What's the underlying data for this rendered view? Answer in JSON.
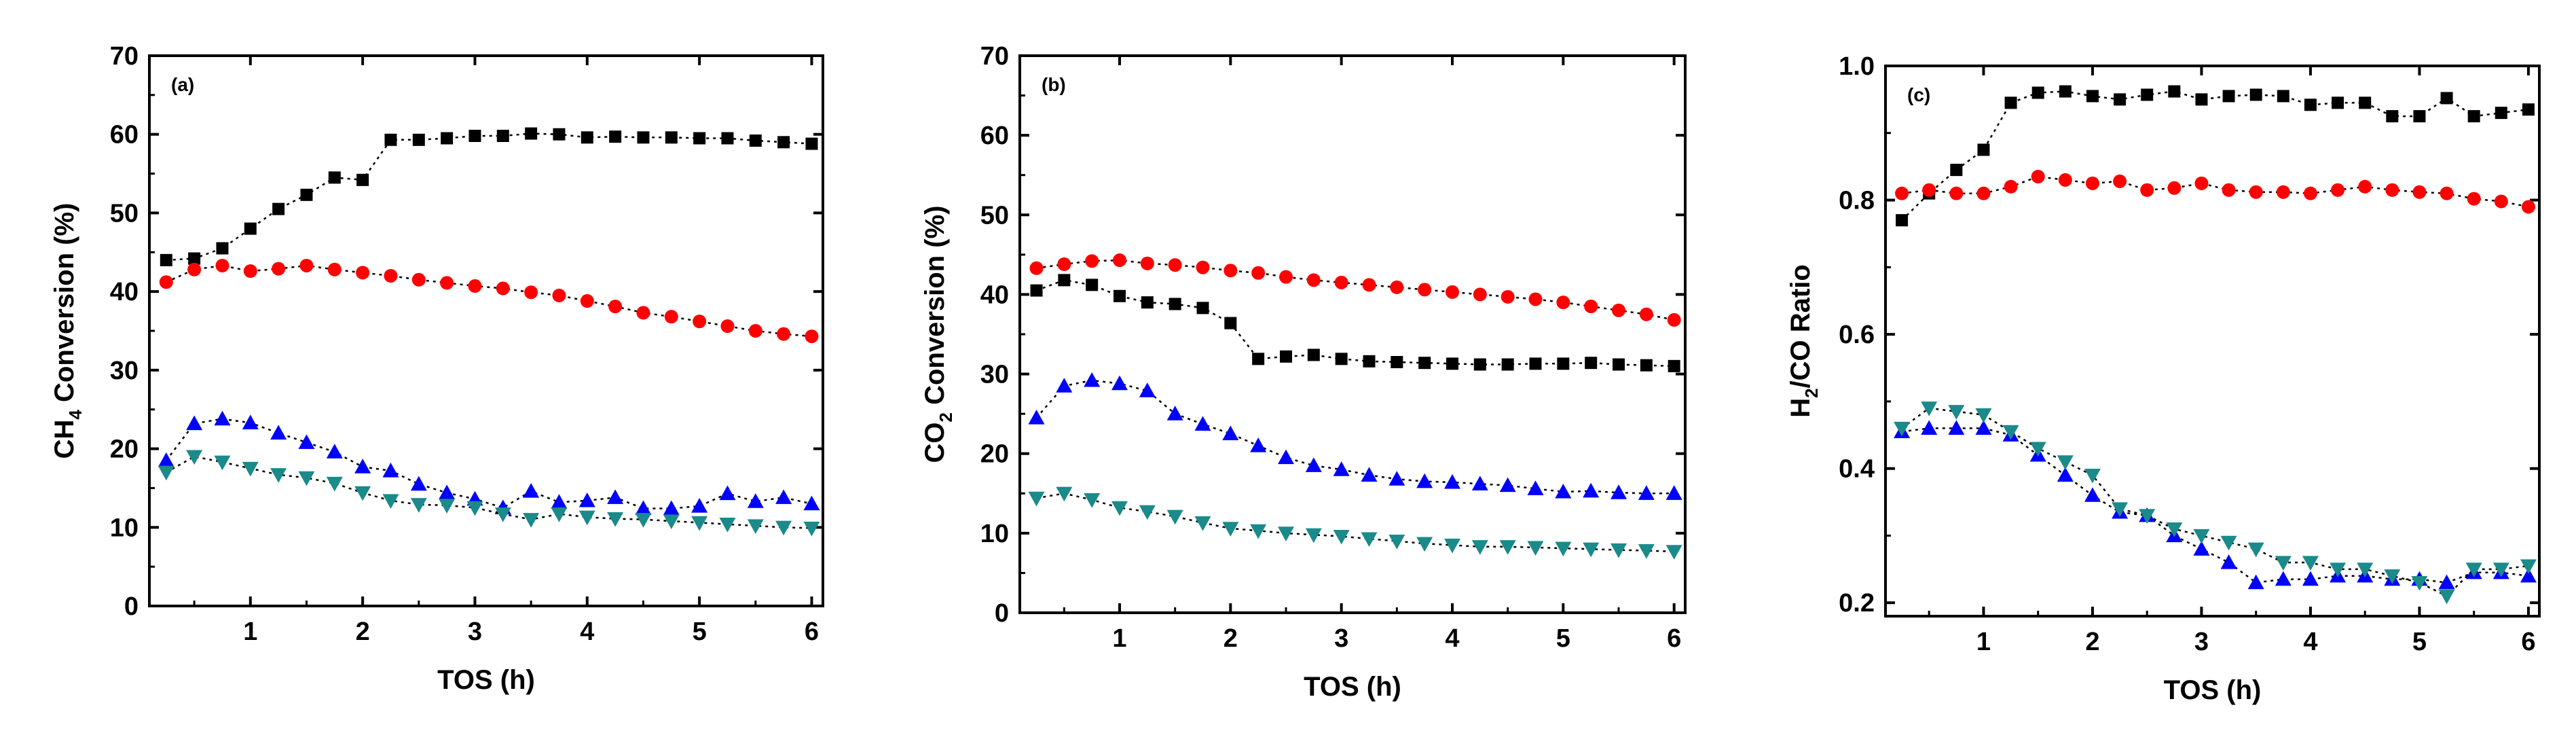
{
  "chart_data": [
    {
      "type": "scatter",
      "panel_label": "(a)",
      "xlabel": "TOS (h)",
      "ylabel": {
        "pre": "CH",
        "sub": "4",
        "post": " Conversion (%)"
      },
      "xlim": [
        0.1,
        6.1
      ],
      "ylim": [
        0,
        70
      ],
      "xticks": [
        1,
        2,
        3,
        4,
        5,
        6
      ],
      "yticks": [
        0,
        10,
        20,
        30,
        40,
        50,
        60,
        70
      ],
      "legend": "none",
      "series": [
        {
          "name": "black squares",
          "marker": "square",
          "color": "#000000",
          "dashed": true,
          "x": [
            0.25,
            0.5,
            0.75,
            1.0,
            1.25,
            1.5,
            1.75,
            2.0,
            2.25,
            2.5,
            2.75,
            3.0,
            3.25,
            3.5,
            3.75,
            4.0,
            4.25,
            4.5,
            4.75,
            5.0,
            5.25,
            5.5,
            5.75,
            6.0
          ],
          "y": [
            44,
            44.2,
            45.5,
            48,
            50.5,
            52.3,
            54.5,
            54.2,
            59.3,
            59.3,
            59.5,
            59.8,
            59.8,
            60.1,
            60,
            59.6,
            59.7,
            59.6,
            59.6,
            59.5,
            59.5,
            59.2,
            59,
            58.8
          ]
        },
        {
          "name": "red circles",
          "marker": "circle",
          "color": "#ff0000",
          "dashed": true,
          "x": [
            0.25,
            0.5,
            0.75,
            1.0,
            1.25,
            1.5,
            1.75,
            2.0,
            2.25,
            2.5,
            2.75,
            3.0,
            3.25,
            3.5,
            3.75,
            4.0,
            4.25,
            4.5,
            4.75,
            5.0,
            5.25,
            5.5,
            5.75,
            6.0
          ],
          "y": [
            41.2,
            42.8,
            43.3,
            42.6,
            42.9,
            43.3,
            42.8,
            42.4,
            42,
            41.5,
            41.1,
            40.7,
            40.4,
            39.9,
            39.5,
            38.8,
            38.1,
            37.3,
            36.8,
            36.2,
            35.6,
            35,
            34.6,
            34.3
          ]
        },
        {
          "name": "blue triangles",
          "marker": "triangle-up",
          "color": "#0000ff",
          "dashed": true,
          "x": [
            0.25,
            0.5,
            0.75,
            1.0,
            1.25,
            1.5,
            1.75,
            2.0,
            2.25,
            2.5,
            2.75,
            3.0,
            3.25,
            3.5,
            3.75,
            4.0,
            4.25,
            4.5,
            4.75,
            5.0,
            5.25,
            5.5,
            5.75,
            6.0
          ],
          "y": [
            18.5,
            23.2,
            23.8,
            23.3,
            22,
            20.8,
            19.6,
            17.7,
            17.2,
            15.5,
            14.4,
            13.6,
            12.5,
            14.6,
            13.2,
            13.4,
            13.8,
            12.4,
            12.4,
            12.7,
            14.3,
            13.3,
            13.8,
            13
          ]
        },
        {
          "name": "teal inverted triangles",
          "marker": "triangle-down",
          "color": "#1a8a8a",
          "dashed": true,
          "x": [
            0.25,
            0.5,
            0.75,
            1.0,
            1.25,
            1.5,
            1.75,
            2.0,
            2.25,
            2.5,
            2.75,
            3.0,
            3.25,
            3.5,
            3.75,
            4.0,
            4.25,
            4.5,
            4.75,
            5.0,
            5.25,
            5.5,
            5.75,
            6.0
          ],
          "y": [
            17,
            19,
            18.3,
            17.5,
            16.7,
            16.3,
            15.6,
            14.4,
            13.4,
            12.9,
            12.8,
            12.5,
            11.7,
            11,
            11.7,
            11.3,
            11.1,
            11,
            10.8,
            10.6,
            10.4,
            10.2,
            10,
            9.9
          ]
        }
      ]
    },
    {
      "type": "scatter",
      "panel_label": "(b)",
      "xlabel": "TOS (h)",
      "ylabel": {
        "pre": "CO",
        "sub": "2",
        "post": " Conversion (%)"
      },
      "xlim": [
        0.1,
        6.1
      ],
      "ylim": [
        0,
        70
      ],
      "xticks": [
        1,
        2,
        3,
        4,
        5,
        6
      ],
      "yticks": [
        0,
        10,
        20,
        30,
        40,
        50,
        60,
        70
      ],
      "legend": "none",
      "series": [
        {
          "name": "black squares",
          "marker": "square",
          "color": "#000000",
          "dashed": true,
          "x": [
            0.25,
            0.5,
            0.75,
            1.0,
            1.25,
            1.5,
            1.75,
            2.0,
            2.25,
            2.5,
            2.75,
            3.0,
            3.25,
            3.5,
            3.75,
            4.0,
            4.25,
            4.5,
            4.75,
            5.0,
            5.25,
            5.5,
            5.75,
            6.0
          ],
          "y": [
            40.5,
            41.8,
            41.2,
            39.8,
            39,
            38.8,
            38.3,
            36.4,
            31.9,
            32.2,
            32.4,
            31.9,
            31.6,
            31.5,
            31.4,
            31.3,
            31.2,
            31.2,
            31.3,
            31.3,
            31.4,
            31.2,
            31.1,
            31
          ]
        },
        {
          "name": "red circles",
          "marker": "circle",
          "color": "#ff0000",
          "dashed": true,
          "x": [
            0.25,
            0.5,
            0.75,
            1.0,
            1.25,
            1.5,
            1.75,
            2.0,
            2.25,
            2.5,
            2.75,
            3.0,
            3.25,
            3.5,
            3.75,
            4.0,
            4.25,
            4.5,
            4.75,
            5.0,
            5.25,
            5.5,
            5.75,
            6.0
          ],
          "y": [
            43.3,
            43.8,
            44.2,
            44.3,
            43.9,
            43.7,
            43.4,
            43,
            42.7,
            42.2,
            41.8,
            41.5,
            41.2,
            40.9,
            40.6,
            40.3,
            40,
            39.7,
            39.4,
            39,
            38.5,
            38,
            37.5,
            36.8
          ]
        },
        {
          "name": "blue triangles",
          "marker": "triangle-up",
          "color": "#0000ff",
          "dashed": true,
          "x": [
            0.25,
            0.5,
            0.75,
            1.0,
            1.25,
            1.5,
            1.75,
            2.0,
            2.25,
            2.5,
            2.75,
            3.0,
            3.25,
            3.5,
            3.75,
            4.0,
            4.25,
            4.5,
            4.75,
            5.0,
            5.25,
            5.5,
            5.75,
            6.0
          ],
          "y": [
            24.5,
            28.5,
            29.2,
            28.8,
            27.9,
            25,
            23.7,
            22.5,
            21,
            19.5,
            18.5,
            18,
            17.3,
            16.8,
            16.5,
            16.4,
            16.2,
            16,
            15.6,
            15.2,
            15.3,
            15.1,
            15,
            15
          ]
        },
        {
          "name": "teal inverted triangles",
          "marker": "triangle-down",
          "color": "#1a8a8a",
          "dashed": true,
          "x": [
            0.25,
            0.5,
            0.75,
            1.0,
            1.25,
            1.5,
            1.75,
            2.0,
            2.25,
            2.5,
            2.75,
            3.0,
            3.25,
            3.5,
            3.75,
            4.0,
            4.25,
            4.5,
            4.75,
            5.0,
            5.25,
            5.5,
            5.75,
            6.0
          ],
          "y": [
            14.4,
            15,
            14.2,
            13.2,
            12.7,
            12.1,
            11.3,
            10.6,
            10.3,
            10,
            9.8,
            9.6,
            9.3,
            9,
            8.7,
            8.5,
            8.3,
            8.3,
            8.2,
            8.1,
            8,
            7.9,
            7.8,
            7.7
          ]
        }
      ]
    },
    {
      "type": "scatter",
      "panel_label": "(c)",
      "xlabel": "TOS (h)",
      "ylabel": {
        "pre": "H",
        "sub": "2",
        "post": "/CO Ratio"
      },
      "xlim": [
        0.1,
        6.1
      ],
      "ylim": [
        0.18,
        1.0
      ],
      "xticks": [
        1,
        2,
        3,
        4,
        5,
        6
      ],
      "yticks": [
        0.2,
        0.4,
        0.6,
        0.8,
        1.0
      ],
      "ytick_labels": [
        "0.2",
        "0.4",
        "0.6",
        "0.8",
        "1.0"
      ],
      "legend": "none",
      "series": [
        {
          "name": "black squares",
          "marker": "square",
          "color": "#000000",
          "dashed": true,
          "x": [
            0.25,
            0.5,
            0.75,
            1.0,
            1.25,
            1.5,
            1.75,
            2.0,
            2.25,
            2.5,
            2.75,
            3.0,
            3.25,
            3.5,
            3.75,
            4.0,
            4.25,
            4.5,
            4.75,
            5.0,
            5.25,
            5.5,
            5.75,
            6.0
          ],
          "y": [
            0.77,
            0.81,
            0.845,
            0.875,
            0.945,
            0.96,
            0.962,
            0.955,
            0.95,
            0.957,
            0.962,
            0.95,
            0.955,
            0.957,
            0.955,
            0.942,
            0.945,
            0.945,
            0.925,
            0.925,
            0.952,
            0.925,
            0.93,
            0.935
          ]
        },
        {
          "name": "red circles",
          "marker": "circle",
          "color": "#ff0000",
          "dashed": true,
          "x": [
            0.25,
            0.5,
            0.75,
            1.0,
            1.25,
            1.5,
            1.75,
            2.0,
            2.25,
            2.5,
            2.75,
            3.0,
            3.25,
            3.5,
            3.75,
            4.0,
            4.25,
            4.5,
            4.75,
            5.0,
            5.25,
            5.5,
            5.75,
            6.0
          ],
          "y": [
            0.81,
            0.815,
            0.81,
            0.81,
            0.82,
            0.835,
            0.83,
            0.825,
            0.828,
            0.815,
            0.818,
            0.825,
            0.815,
            0.812,
            0.812,
            0.81,
            0.815,
            0.82,
            0.815,
            0.812,
            0.81,
            0.802,
            0.798,
            0.79
          ]
        },
        {
          "name": "blue triangles",
          "marker": "triangle-up",
          "color": "#0000ff",
          "dashed": true,
          "x": [
            0.25,
            0.5,
            0.75,
            1.0,
            1.25,
            1.5,
            1.75,
            2.0,
            2.25,
            2.5,
            2.75,
            3.0,
            3.25,
            3.5,
            3.75,
            4.0,
            4.25,
            4.5,
            4.75,
            5.0,
            5.25,
            5.5,
            5.75,
            6.0
          ],
          "y": [
            0.455,
            0.46,
            0.46,
            0.46,
            0.45,
            0.42,
            0.39,
            0.36,
            0.335,
            0.33,
            0.3,
            0.28,
            0.26,
            0.23,
            0.235,
            0.235,
            0.24,
            0.24,
            0.235,
            0.235,
            0.23,
            0.245,
            0.245,
            0.24
          ]
        },
        {
          "name": "teal inverted triangles",
          "marker": "triangle-down",
          "color": "#1a8a8a",
          "dashed": true,
          "x": [
            0.25,
            0.5,
            0.75,
            1.0,
            1.25,
            1.5,
            1.75,
            2.0,
            2.25,
            2.5,
            2.75,
            3.0,
            3.25,
            3.5,
            3.75,
            4.0,
            4.25,
            4.5,
            4.75,
            5.0,
            5.25,
            5.5,
            5.75,
            6.0
          ],
          "y": [
            0.46,
            0.49,
            0.485,
            0.48,
            0.455,
            0.43,
            0.41,
            0.39,
            0.34,
            0.33,
            0.31,
            0.3,
            0.29,
            0.28,
            0.26,
            0.26,
            0.25,
            0.25,
            0.24,
            0.23,
            0.21,
            0.25,
            0.25,
            0.255
          ]
        }
      ]
    }
  ]
}
